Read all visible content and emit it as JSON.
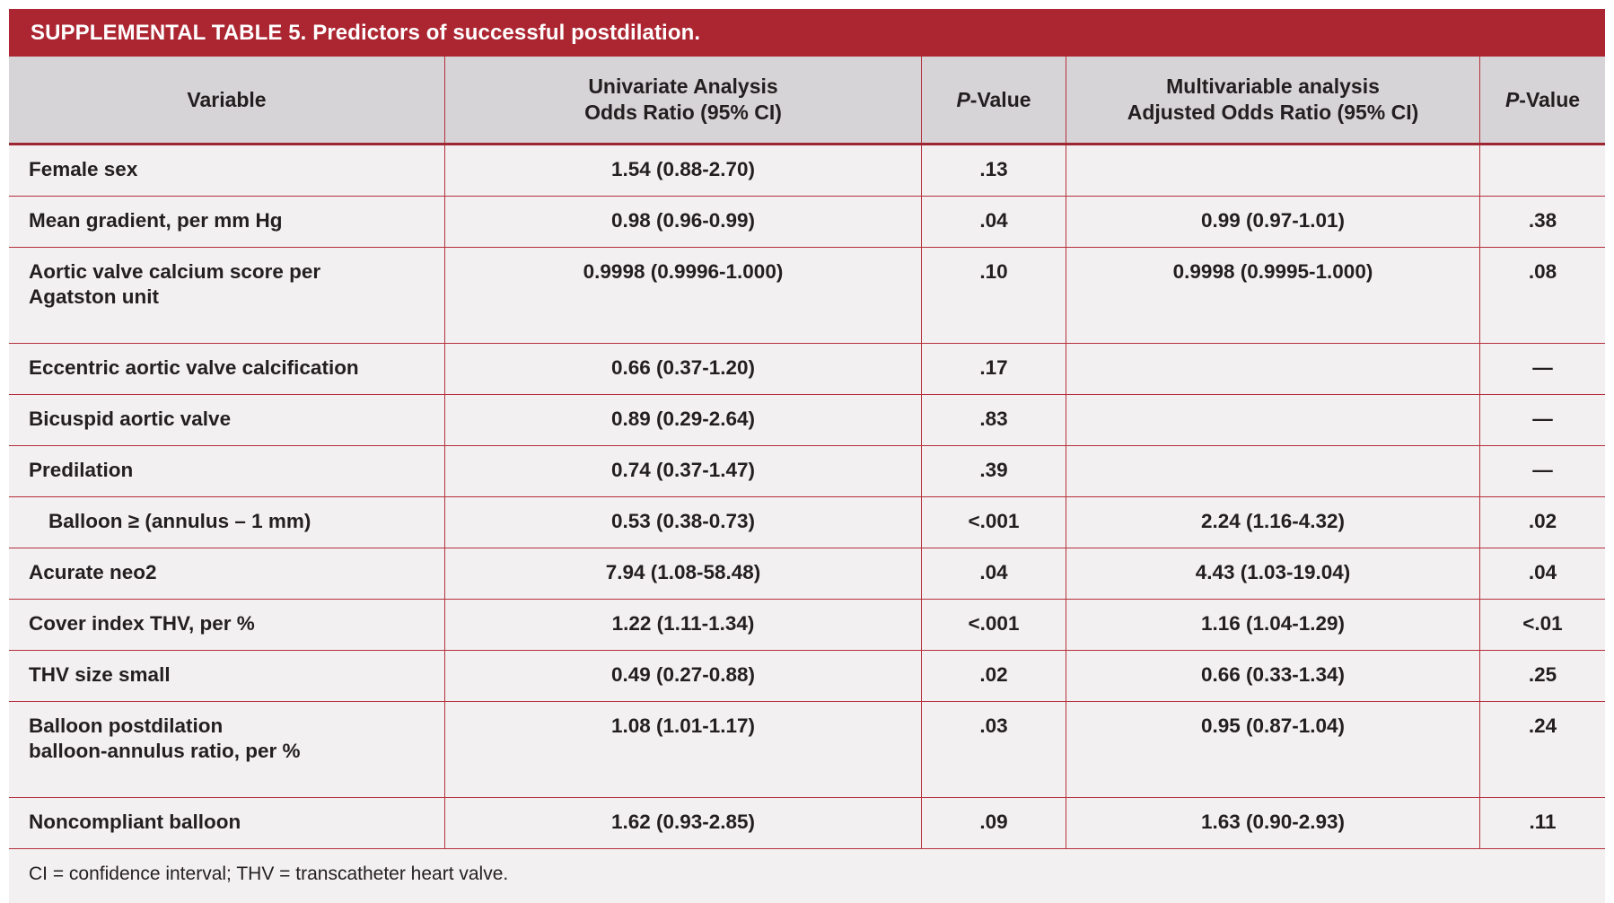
{
  "table": {
    "title": "SUPPLEMENTAL TABLE 5. Predictors of successful postdilation.",
    "header": {
      "variable": "Variable",
      "univariate_line1": "Univariate Analysis",
      "univariate_line2": "Odds Ratio (95% CI)",
      "p_value_1": "P-Value",
      "multivariable_line1": "Multivariable analysis",
      "multivariable_line2": "Adjusted Odds Ratio (95% CI)",
      "p_value_2": "P-Value"
    },
    "rows": [
      {
        "variable": "Female sex",
        "indent": false,
        "uni_or": "1.54 (0.88-2.70)",
        "p1": ".13",
        "multi_or": "",
        "p2": ""
      },
      {
        "variable": "Mean gradient, per mm Hg",
        "indent": false,
        "uni_or": "0.98 (0.96-0.99)",
        "p1": ".04",
        "multi_or": "0.99 (0.97-1.01)",
        "p2": ".38"
      },
      {
        "variable": "Aortic valve calcium score per\nAgatston unit",
        "indent": false,
        "uni_or": "0.9998 (0.9996-1.000)",
        "p1": ".10",
        "multi_or": "0.9998 (0.9995-1.000)",
        "p2": ".08"
      },
      {
        "variable": "Eccentric aortic valve calcification",
        "indent": false,
        "uni_or": "0.66 (0.37-1.20)",
        "p1": ".17",
        "multi_or": "",
        "p2": "—"
      },
      {
        "variable": "Bicuspid aortic valve",
        "indent": false,
        "uni_or": "0.89 (0.29-2.64)",
        "p1": ".83",
        "multi_or": "",
        "p2": "—"
      },
      {
        "variable": "Predilation",
        "indent": false,
        "uni_or": "0.74 (0.37-1.47)",
        "p1": ".39",
        "multi_or": "",
        "p2": "—"
      },
      {
        "variable": "Balloon ≥ (annulus – 1 mm)",
        "indent": true,
        "uni_or": "0.53 (0.38-0.73)",
        "p1": "<.001",
        "multi_or": "2.24 (1.16-4.32)",
        "p2": ".02"
      },
      {
        "variable": "Acurate neo2",
        "indent": false,
        "uni_or": "7.94 (1.08-58.48)",
        "p1": ".04",
        "multi_or": "4.43 (1.03-19.04)",
        "p2": ".04"
      },
      {
        "variable": "Cover index THV, per %",
        "indent": false,
        "uni_or": "1.22 (1.11-1.34)",
        "p1": "<.001",
        "multi_or": "1.16 (1.04-1.29)",
        "p2": "<.01"
      },
      {
        "variable": "THV size small",
        "indent": false,
        "uni_or": "0.49 (0.27-0.88)",
        "p1": ".02",
        "multi_or": "0.66 (0.33-1.34)",
        "p2": ".25"
      },
      {
        "variable": "Balloon postdilation\nballoon-annulus ratio, per %",
        "indent": false,
        "uni_or": "1.08 (1.01-1.17)",
        "p1": ".03",
        "multi_or": "0.95 (0.87-1.04)",
        "p2": ".24"
      },
      {
        "variable": "Noncompliant balloon",
        "indent": false,
        "uni_or": "1.62 (0.93-2.85)",
        "p1": ".09",
        "multi_or": "1.63 (0.90-2.93)",
        "p2": ".11"
      }
    ],
    "footnote": "CI = confidence interval; THV = transcatheter heart valve."
  },
  "colors": {
    "title_bar_red": "#ac2632",
    "border_red": "#b5303c",
    "header_border_red": "#9e2633",
    "header_bg_gray": "#d6d4d6",
    "row_bg": "#f2f0f1",
    "text": "#231f20",
    "title_text": "#ffffff"
  }
}
